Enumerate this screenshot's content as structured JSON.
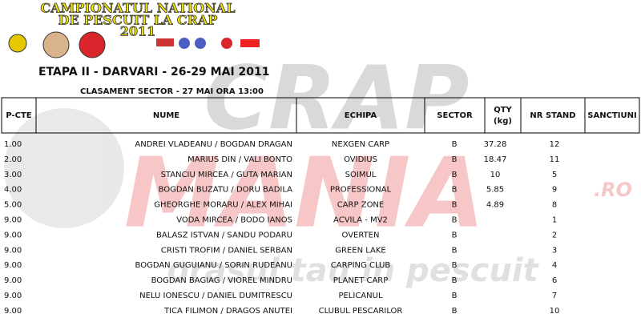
{
  "banner": {
    "line1": "CAMPIONATUL NATIONAL",
    "line2": "DE PESCUIT LA CRAP",
    "line3": "2011"
  },
  "watermark": {
    "brand1": "CRAP",
    "brand2": "MANIA",
    "domain": ".RO",
    "slogan": "orasul tau in pescuit"
  },
  "heading": {
    "title": "ETAPA II - DARVARI - 26-29 MAI 2011",
    "subtitle": "CLASAMENT SECTOR  - 27 MAI ORA 13:00"
  },
  "table": {
    "columns": [
      "P-CTE",
      "NUME",
      "ECHIPA",
      "SECTOR",
      "QTY\n(kg)",
      "NR STAND",
      "SANCTIUNI"
    ],
    "rows": [
      {
        "pcte": "1.00",
        "nume": "ANDREI VLADEANU / BOGDAN DRAGAN",
        "echipa": "NEXGEN CARP",
        "sector": "B",
        "qty": "37.28",
        "stand": "12"
      },
      {
        "pcte": "2.00",
        "nume": "MARIUS DIN / VALI BONTO",
        "echipa": "OVIDIUS",
        "sector": "B",
        "qty": "18.47",
        "stand": "11"
      },
      {
        "pcte": "3.00",
        "nume": "STANCIU MIRCEA / GUTA MARIAN",
        "echipa": "SOIMUL",
        "sector": "B",
        "qty": "10",
        "stand": "5"
      },
      {
        "pcte": "4.00",
        "nume": "BOGDAN BUZATU / DORU BADILA",
        "echipa": "PROFESSIONAL",
        "sector": "B",
        "qty": "5.85",
        "stand": "9"
      },
      {
        "pcte": "5.00",
        "nume": "GHEORGHE MORARU / ALEX MIHAI",
        "echipa": "CARP ZONE",
        "sector": "B",
        "qty": "4.89",
        "stand": "8"
      },
      {
        "pcte": "9.00",
        "nume": "VODA MIRCEA / BODO IANOS",
        "echipa": "ACVILA - MV2",
        "sector": "B",
        "stand": "1"
      },
      {
        "pcte": "9.00",
        "nume": "BALASZ ISTVAN / SANDU PODARU",
        "echipa": "OVERTEN",
        "sector": "B",
        "stand": "2"
      },
      {
        "pcte": "9.00",
        "nume": "CRISTI TROFIM / DANIEL SERBAN",
        "echipa": "GREEN LAKE",
        "sector": "B",
        "stand": "3"
      },
      {
        "pcte": "9.00",
        "nume": "BOGDAN GUGUIANU / SORIN RUDEANU",
        "echipa": "CARPING CLUB",
        "sector": "B",
        "stand": "4"
      },
      {
        "pcte": "9.00",
        "nume": "BOGDAN BAGIAG / VIOREL MINDRU",
        "echipa": "PLANET CARP",
        "sector": "B",
        "stand": "6"
      },
      {
        "pcte": "9.00",
        "nume": "NELU IONESCU / DANIEL DUMITRESCU",
        "echipa": "PELICANUL",
        "sector": "B",
        "stand": "7"
      },
      {
        "pcte": "9.00",
        "nume": "TICA FILIMON / DRAGOS ANUTEI",
        "echipa": "CLUBUL PESCARILOR",
        "sector": "B",
        "stand": "10"
      }
    ]
  }
}
